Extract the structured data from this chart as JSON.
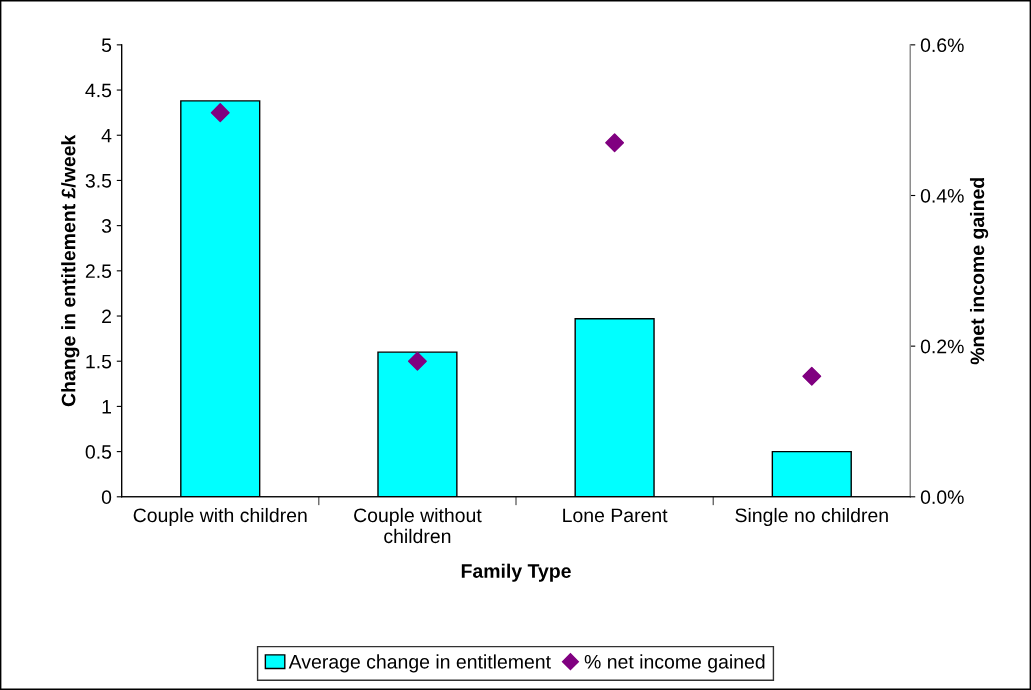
{
  "chart_data": {
    "type": "bar",
    "categories": [
      "Couple with children",
      "Couple without\nchildren",
      "Lone Parent",
      "Single no children"
    ],
    "xlabel": "Family Type",
    "ylabel": "Change in entitlement £/week",
    "y2label": "%net income gained",
    "series": [
      {
        "name": "Average change in entitlement",
        "color": "#00ffff",
        "values": [
          4.38,
          1.6,
          1.97,
          0.5
        ]
      },
      {
        "name": "% net income gained",
        "type": "scatter",
        "axis": "y2",
        "marker": "diamond",
        "color": "#800080",
        "values": [
          0.51,
          0.18,
          0.47,
          0.16
        ]
      }
    ],
    "ylim": [
      0,
      5
    ],
    "yticks": [
      0,
      0.5,
      1,
      1.5,
      2,
      2.5,
      3,
      3.5,
      4,
      4.5,
      5
    ],
    "y2lim": [
      0,
      0.6
    ],
    "y2ticks": [
      {
        "value": 0,
        "label": "0.0%"
      },
      {
        "value": 0.2,
        "label": "0.2%"
      },
      {
        "value": 0.4,
        "label": "0.4%"
      },
      {
        "value": 0.6,
        "label": "0.6%"
      }
    ],
    "grid": false,
    "legend": "bottom"
  }
}
